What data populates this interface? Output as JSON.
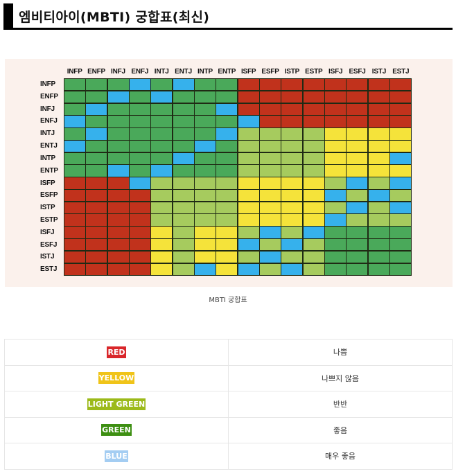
{
  "title": "엠비티아이(MBTI) 궁합표(최신)",
  "caption": "MBTI 궁합표",
  "colors": {
    "R": "#c1321c",
    "Y": "#f5e33a",
    "L": "#a6cb5e",
    "G": "#4aa95a",
    "B": "#36b1ec"
  },
  "legend": [
    {
      "label": "RED",
      "meaning": "나쁨",
      "bg": "#d9262a",
      "fg": "#ffffff"
    },
    {
      "label": "YELLOW",
      "meaning": "나쁘지 않음",
      "bg": "#f0c419",
      "fg": "#ffffff"
    },
    {
      "label": "LIGHT GREEN",
      "meaning": "반반",
      "bg": "#9cba1a",
      "fg": "#ffffff"
    },
    {
      "label": "GREEN",
      "meaning": "좋음",
      "bg": "#3d8f12",
      "fg": "#ffffff"
    },
    {
      "label": "BLUE",
      "meaning": "매우 좋음",
      "bg": "#a4cdf2",
      "fg": "#ffffff"
    }
  ],
  "chart_data": {
    "type": "heatmap",
    "title": "MBTI 궁합표",
    "x": [
      "INFP",
      "ENFP",
      "INFJ",
      "ENFJ",
      "INTJ",
      "ENTJ",
      "INTP",
      "ENTP",
      "ISFP",
      "ESFP",
      "ISTP",
      "ESTP",
      "ISFJ",
      "ESFJ",
      "ISTJ",
      "ESTJ"
    ],
    "y": [
      "INFP",
      "ENFP",
      "INFJ",
      "ENFJ",
      "INTJ",
      "ENTJ",
      "INTP",
      "ENTP",
      "ISFP",
      "ESFP",
      "ISTP",
      "ESTP",
      "ISFJ",
      "ESFJ",
      "ISTJ",
      "ESTJ"
    ],
    "legend": {
      "R": "RED - 나쁨",
      "Y": "YELLOW - 나쁘지 않음",
      "L": "LIGHT GREEN - 반반",
      "G": "GREEN - 좋음",
      "B": "BLUE - 매우 좋음"
    },
    "values": [
      [
        "G",
        "G",
        "G",
        "B",
        "G",
        "B",
        "G",
        "G",
        "R",
        "R",
        "R",
        "R",
        "R",
        "R",
        "R",
        "R"
      ],
      [
        "G",
        "G",
        "B",
        "G",
        "B",
        "G",
        "G",
        "G",
        "R",
        "R",
        "R",
        "R",
        "R",
        "R",
        "R",
        "R"
      ],
      [
        "G",
        "B",
        "G",
        "G",
        "G",
        "G",
        "G",
        "B",
        "R",
        "R",
        "R",
        "R",
        "R",
        "R",
        "R",
        "R"
      ],
      [
        "B",
        "G",
        "G",
        "G",
        "G",
        "G",
        "G",
        "G",
        "B",
        "R",
        "R",
        "R",
        "R",
        "R",
        "R",
        "R"
      ],
      [
        "G",
        "B",
        "G",
        "G",
        "G",
        "G",
        "G",
        "B",
        "L",
        "L",
        "L",
        "L",
        "Y",
        "Y",
        "Y",
        "Y"
      ],
      [
        "B",
        "G",
        "G",
        "G",
        "G",
        "G",
        "B",
        "G",
        "L",
        "L",
        "L",
        "L",
        "Y",
        "Y",
        "Y",
        "Y"
      ],
      [
        "G",
        "G",
        "G",
        "G",
        "G",
        "B",
        "G",
        "G",
        "L",
        "L",
        "L",
        "L",
        "Y",
        "Y",
        "Y",
        "B"
      ],
      [
        "G",
        "G",
        "B",
        "G",
        "B",
        "G",
        "G",
        "G",
        "L",
        "L",
        "L",
        "L",
        "Y",
        "Y",
        "Y",
        "Y"
      ],
      [
        "R",
        "R",
        "R",
        "B",
        "L",
        "L",
        "L",
        "L",
        "Y",
        "Y",
        "Y",
        "Y",
        "L",
        "B",
        "L",
        "B"
      ],
      [
        "R",
        "R",
        "R",
        "R",
        "L",
        "L",
        "L",
        "L",
        "Y",
        "Y",
        "Y",
        "Y",
        "B",
        "L",
        "B",
        "L"
      ],
      [
        "R",
        "R",
        "R",
        "R",
        "L",
        "L",
        "L",
        "L",
        "Y",
        "Y",
        "Y",
        "Y",
        "L",
        "B",
        "L",
        "B"
      ],
      [
        "R",
        "R",
        "R",
        "R",
        "L",
        "L",
        "L",
        "L",
        "Y",
        "Y",
        "Y",
        "Y",
        "B",
        "L",
        "L",
        "L"
      ],
      [
        "R",
        "R",
        "R",
        "R",
        "Y",
        "L",
        "Y",
        "Y",
        "L",
        "B",
        "L",
        "B",
        "G",
        "G",
        "G",
        "G"
      ],
      [
        "R",
        "R",
        "R",
        "R",
        "Y",
        "L",
        "Y",
        "Y",
        "B",
        "L",
        "B",
        "L",
        "G",
        "G",
        "G",
        "G"
      ],
      [
        "R",
        "R",
        "R",
        "R",
        "Y",
        "L",
        "Y",
        "Y",
        "L",
        "B",
        "L",
        "L",
        "G",
        "G",
        "G",
        "G"
      ],
      [
        "R",
        "R",
        "R",
        "R",
        "Y",
        "L",
        "B",
        "Y",
        "B",
        "L",
        "B",
        "L",
        "G",
        "G",
        "G",
        "G"
      ]
    ]
  }
}
